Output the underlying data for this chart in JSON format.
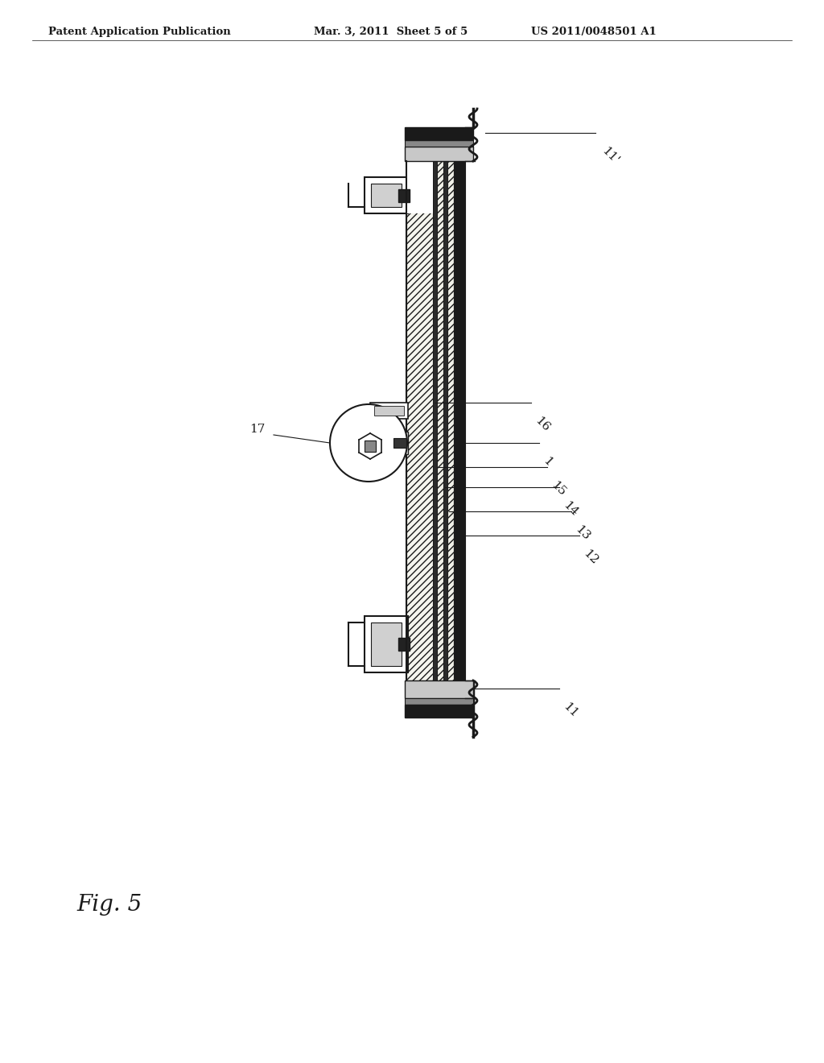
{
  "header_left": "Patent Application Publication",
  "header_mid": "Mar. 3, 2011  Sheet 5 of 5",
  "header_right": "US 2011/0048501 A1",
  "fig_label": "Fig. 5",
  "bg_color": "#ffffff",
  "line_color": "#1a1a1a",
  "label_rotation": -45
}
